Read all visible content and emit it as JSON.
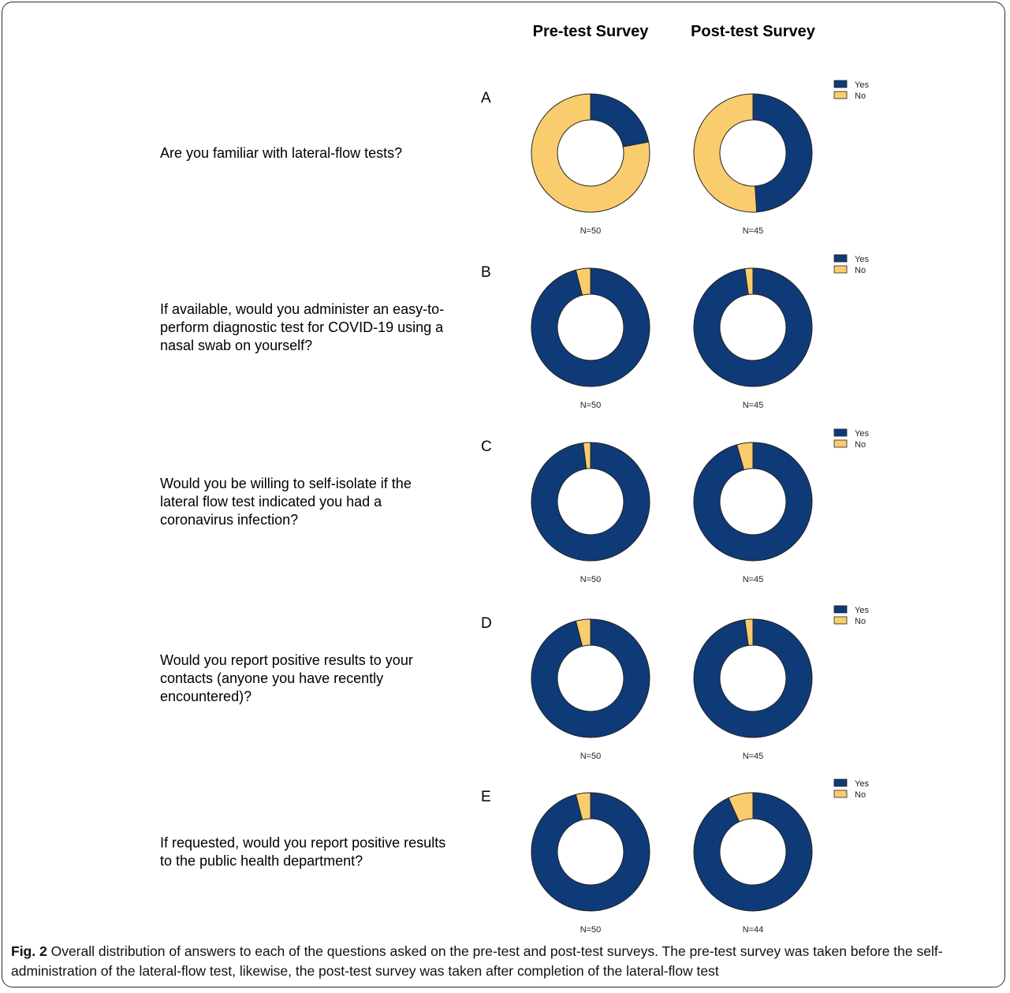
{
  "colors": {
    "yes": "#0f3a78",
    "no": "#f9cd6e",
    "outline": "#222222"
  },
  "columns": [
    "Pre-test Survey",
    "Post-test Survey"
  ],
  "legend": [
    "Yes",
    "No"
  ],
  "caption": {
    "label": "Fig. 2",
    "text": "Overall distribution of answers to each of the questions asked on the pre-test and post-test surveys. The pre-test survey was taken before the self-administration of the lateral-flow test, likewise, the post-test survey was taken after completion of the lateral-flow test"
  },
  "chart_data": {
    "type": "pie",
    "variant": "donut",
    "legend_position": "right",
    "series_names": [
      "Yes",
      "No"
    ],
    "panels": [
      {
        "letter": "A",
        "question_lines": [
          "Are you familiar with lateral-flow tests?"
        ],
        "pre": {
          "n_label": "N=50",
          "values": [
            22,
            78
          ]
        },
        "post": {
          "n_label": "N=45",
          "values": [
            49,
            51
          ]
        }
      },
      {
        "letter": "B",
        "question_lines": [
          "If available, would you administer an easy-to-",
          "perform diagnostic test for COVID-19 using a",
          "nasal swab on yourself?"
        ],
        "pre": {
          "n_label": "N=50",
          "values": [
            96,
            4
          ]
        },
        "post": {
          "n_label": "N=45",
          "values": [
            97.8,
            2.2
          ]
        }
      },
      {
        "letter": "C",
        "question_lines": [
          "Would you be willing to self-isolate if the",
          "lateral flow test indicated you had a",
          "coronavirus infection?"
        ],
        "pre": {
          "n_label": "N=50",
          "values": [
            98,
            2
          ]
        },
        "post": {
          "n_label": "N=45",
          "values": [
            95.6,
            4.4
          ]
        }
      },
      {
        "letter": "D",
        "question_lines": [
          "Would you report positive results to your",
          "contacts (anyone you have recently",
          "encountered)?"
        ],
        "pre": {
          "n_label": "N=50",
          "values": [
            96,
            4
          ]
        },
        "post": {
          "n_label": "N=45",
          "values": [
            97.8,
            2.2
          ]
        }
      },
      {
        "letter": "E",
        "question_lines": [
          "If requested, would you report positive results",
          "to the public health department?"
        ],
        "pre": {
          "n_label": "N=50",
          "values": [
            96,
            4
          ]
        },
        "post": {
          "n_label": "N=44",
          "values": [
            93.2,
            6.8
          ]
        }
      }
    ]
  }
}
